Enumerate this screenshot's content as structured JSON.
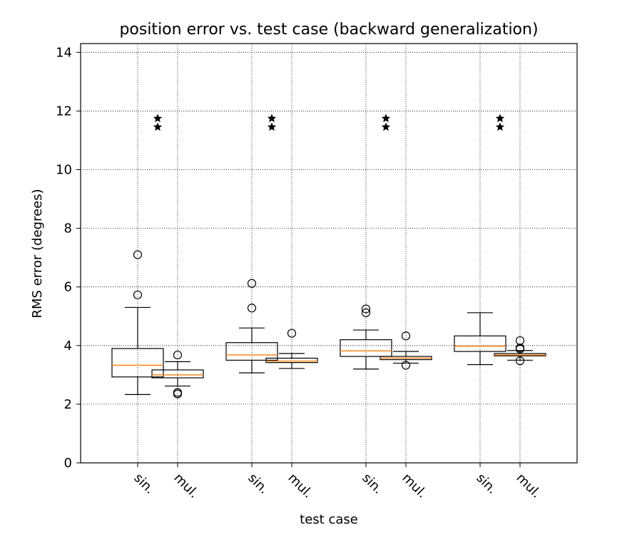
{
  "chart_data": {
    "type": "box",
    "title": "position error vs. test case (backward generalization)",
    "xlabel": "test case",
    "ylabel": "RMS error (degrees)",
    "ylim": [
      0,
      14.3
    ],
    "yticks": [
      0,
      2,
      4,
      6,
      8,
      10,
      12,
      14
    ],
    "grid": true,
    "tick_labels": [
      "sin.",
      "mul.",
      "sin.",
      "mul.",
      "sin.",
      "mul.",
      "sin.",
      "mul."
    ],
    "boxes": [
      {
        "label": "sin.",
        "group": 1,
        "whisker_low": 2.33,
        "q1": 2.93,
        "median": 3.33,
        "q3": 3.9,
        "whisker_high": 5.3,
        "fliers": [
          5.73,
          7.1
        ]
      },
      {
        "label": "mul.",
        "group": 1,
        "whisker_low": 2.62,
        "q1": 2.9,
        "median": 3.0,
        "q3": 3.17,
        "whisker_high": 3.45,
        "fliers": [
          2.35,
          2.4,
          3.68
        ]
      },
      {
        "label": "sin.",
        "group": 2,
        "whisker_low": 3.07,
        "q1": 3.5,
        "median": 3.68,
        "q3": 4.1,
        "whisker_high": 4.6,
        "fliers": [
          5.28,
          6.12
        ]
      },
      {
        "label": "mul.",
        "group": 2,
        "whisker_low": 3.22,
        "q1": 3.42,
        "median": 3.47,
        "q3": 3.57,
        "whisker_high": 3.73,
        "fliers": [
          4.42
        ]
      },
      {
        "label": "sin.",
        "group": 3,
        "whisker_low": 3.2,
        "q1": 3.63,
        "median": 3.82,
        "q3": 4.2,
        "whisker_high": 4.53,
        "fliers": [
          5.12,
          5.25
        ]
      },
      {
        "label": "mul.",
        "group": 3,
        "whisker_low": 3.4,
        "q1": 3.52,
        "median": 3.57,
        "q3": 3.63,
        "whisker_high": 3.8,
        "fliers": [
          3.33,
          4.33
        ]
      },
      {
        "label": "sin.",
        "group": 4,
        "whisker_low": 3.35,
        "q1": 3.8,
        "median": 3.98,
        "q3": 4.33,
        "whisker_high": 5.12,
        "fliers": []
      },
      {
        "label": "mul.",
        "group": 4,
        "whisker_low": 3.5,
        "q1": 3.65,
        "median": 3.68,
        "q3": 3.73,
        "whisker_high": 3.83,
        "fliers": [
          3.48,
          3.88,
          3.92,
          4.17
        ]
      }
    ],
    "significance_markers": [
      {
        "group": 1,
        "stars": 2,
        "y": 11.6
      },
      {
        "group": 2,
        "stars": 2,
        "y": 11.6
      },
      {
        "group": 3,
        "stars": 2,
        "y": 11.6
      },
      {
        "group": 4,
        "stars": 2,
        "y": 11.6
      }
    ],
    "colors": {
      "box": "#000000",
      "median": "#ff7f0e",
      "grid": "#000000"
    }
  }
}
